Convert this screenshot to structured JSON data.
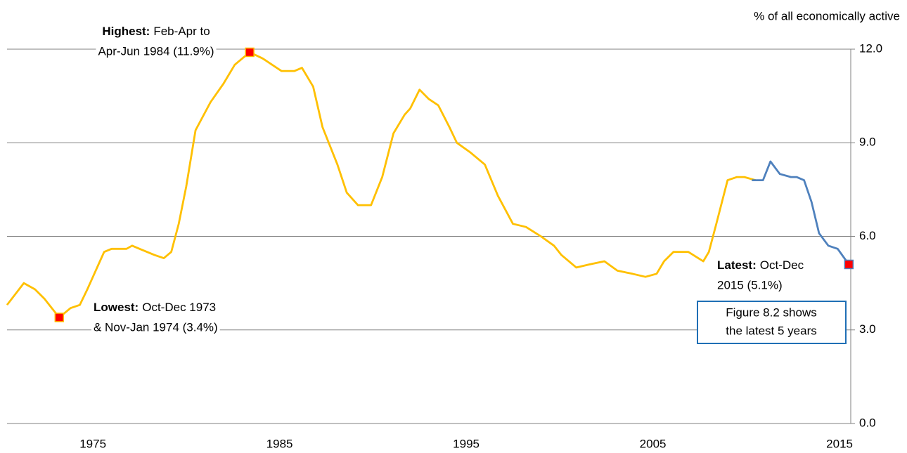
{
  "chart_data": {
    "type": "line",
    "axis_label": "% of all economically active",
    "xlim": [
      1970.4,
      2015.6
    ],
    "xticks": [
      1975,
      1985,
      1995,
      2005,
      2015
    ],
    "ylim": [
      0,
      12
    ],
    "yticks": [
      {
        "value": 0,
        "label": "0.0"
      },
      {
        "value": 3,
        "label": "3.0"
      },
      {
        "value": 6,
        "label": "6.0"
      },
      {
        "value": 9,
        "label": "9.0"
      },
      {
        "value": 12,
        "label": "12.0"
      }
    ],
    "grid": true,
    "series": [
      {
        "color": "#ffc000",
        "x": [
          1970.4,
          1971.3,
          1971.9,
          1972.4,
          1972.8,
          1973.2,
          1973.8,
          1974.3,
          1974.7,
          1975.3,
          1975.6,
          1976.0,
          1976.8,
          1977.1,
          1977.5,
          1978.3,
          1978.8,
          1979.2,
          1979.6,
          1980.0,
          1980.5,
          1981.3,
          1982.0,
          1982.6,
          1983.4,
          1984.1,
          1985.1,
          1985.8,
          1986.2,
          1986.8,
          1987.3,
          1988.1,
          1988.6,
          1989.2,
          1989.9,
          1990.5,
          1991.1,
          1991.7,
          1992.0,
          1992.5,
          1993.0,
          1993.5,
          1994.1,
          1994.5,
          1995.2,
          1996.0,
          1996.7,
          1997.5,
          1998.2,
          1999.0,
          1999.7,
          2000.1,
          2000.9,
          2001.6,
          2002.4,
          2003.1,
          2003.9,
          2004.6,
          2005.2,
          2005.6,
          2006.1,
          2006.9,
          2007.7,
          2008.0,
          2008.4,
          2009.0,
          2009.5,
          2009.9,
          2010.5
        ],
        "values": [
          3.8,
          4.5,
          4.3,
          4.0,
          3.7,
          3.4,
          3.7,
          3.8,
          4.3,
          5.1,
          5.5,
          5.6,
          5.6,
          5.7,
          5.6,
          5.4,
          5.3,
          5.5,
          6.4,
          7.6,
          9.4,
          10.3,
          10.9,
          11.5,
          11.9,
          11.7,
          11.3,
          11.3,
          11.4,
          10.8,
          9.5,
          8.3,
          7.4,
          7.0,
          7.0,
          7.9,
          9.3,
          9.9,
          10.1,
          10.7,
          10.4,
          10.2,
          9.5,
          9.0,
          8.7,
          8.3,
          7.3,
          6.4,
          6.3,
          6.0,
          5.7,
          5.4,
          5.0,
          5.1,
          5.2,
          4.9,
          4.8,
          4.7,
          4.8,
          5.2,
          5.5,
          5.5,
          5.2,
          5.5,
          6.4,
          7.8,
          7.9,
          7.9,
          7.8
        ]
      },
      {
        "color": "#4f81bd",
        "x": [
          2010.3,
          2010.9,
          2011.3,
          2011.8,
          2012.4,
          2012.7,
          2013.1,
          2013.5,
          2013.9,
          2014.4,
          2014.9,
          2015.5
        ],
        "values": [
          7.8,
          7.8,
          8.4,
          8.0,
          7.9,
          7.9,
          7.8,
          7.1,
          6.1,
          5.7,
          5.6,
          5.1
        ]
      }
    ],
    "marker_color": "#ff0000",
    "annotations": [
      {
        "label": "Highest:",
        "text": [
          "Feb-Apr to",
          "Apr-Jun 1984 (11.9%)"
        ]
      },
      {
        "label": "Lowest:",
        "text": [
          "Oct-Dec 1973",
          "& Nov-Jan 1974 (3.4%)"
        ]
      },
      {
        "label": "Latest:",
        "text": [
          "Oct-Dec",
          "2015 (5.1%)"
        ]
      }
    ],
    "note": [
      "Figure 8.2 shows",
      "the latest 5 years"
    ]
  }
}
